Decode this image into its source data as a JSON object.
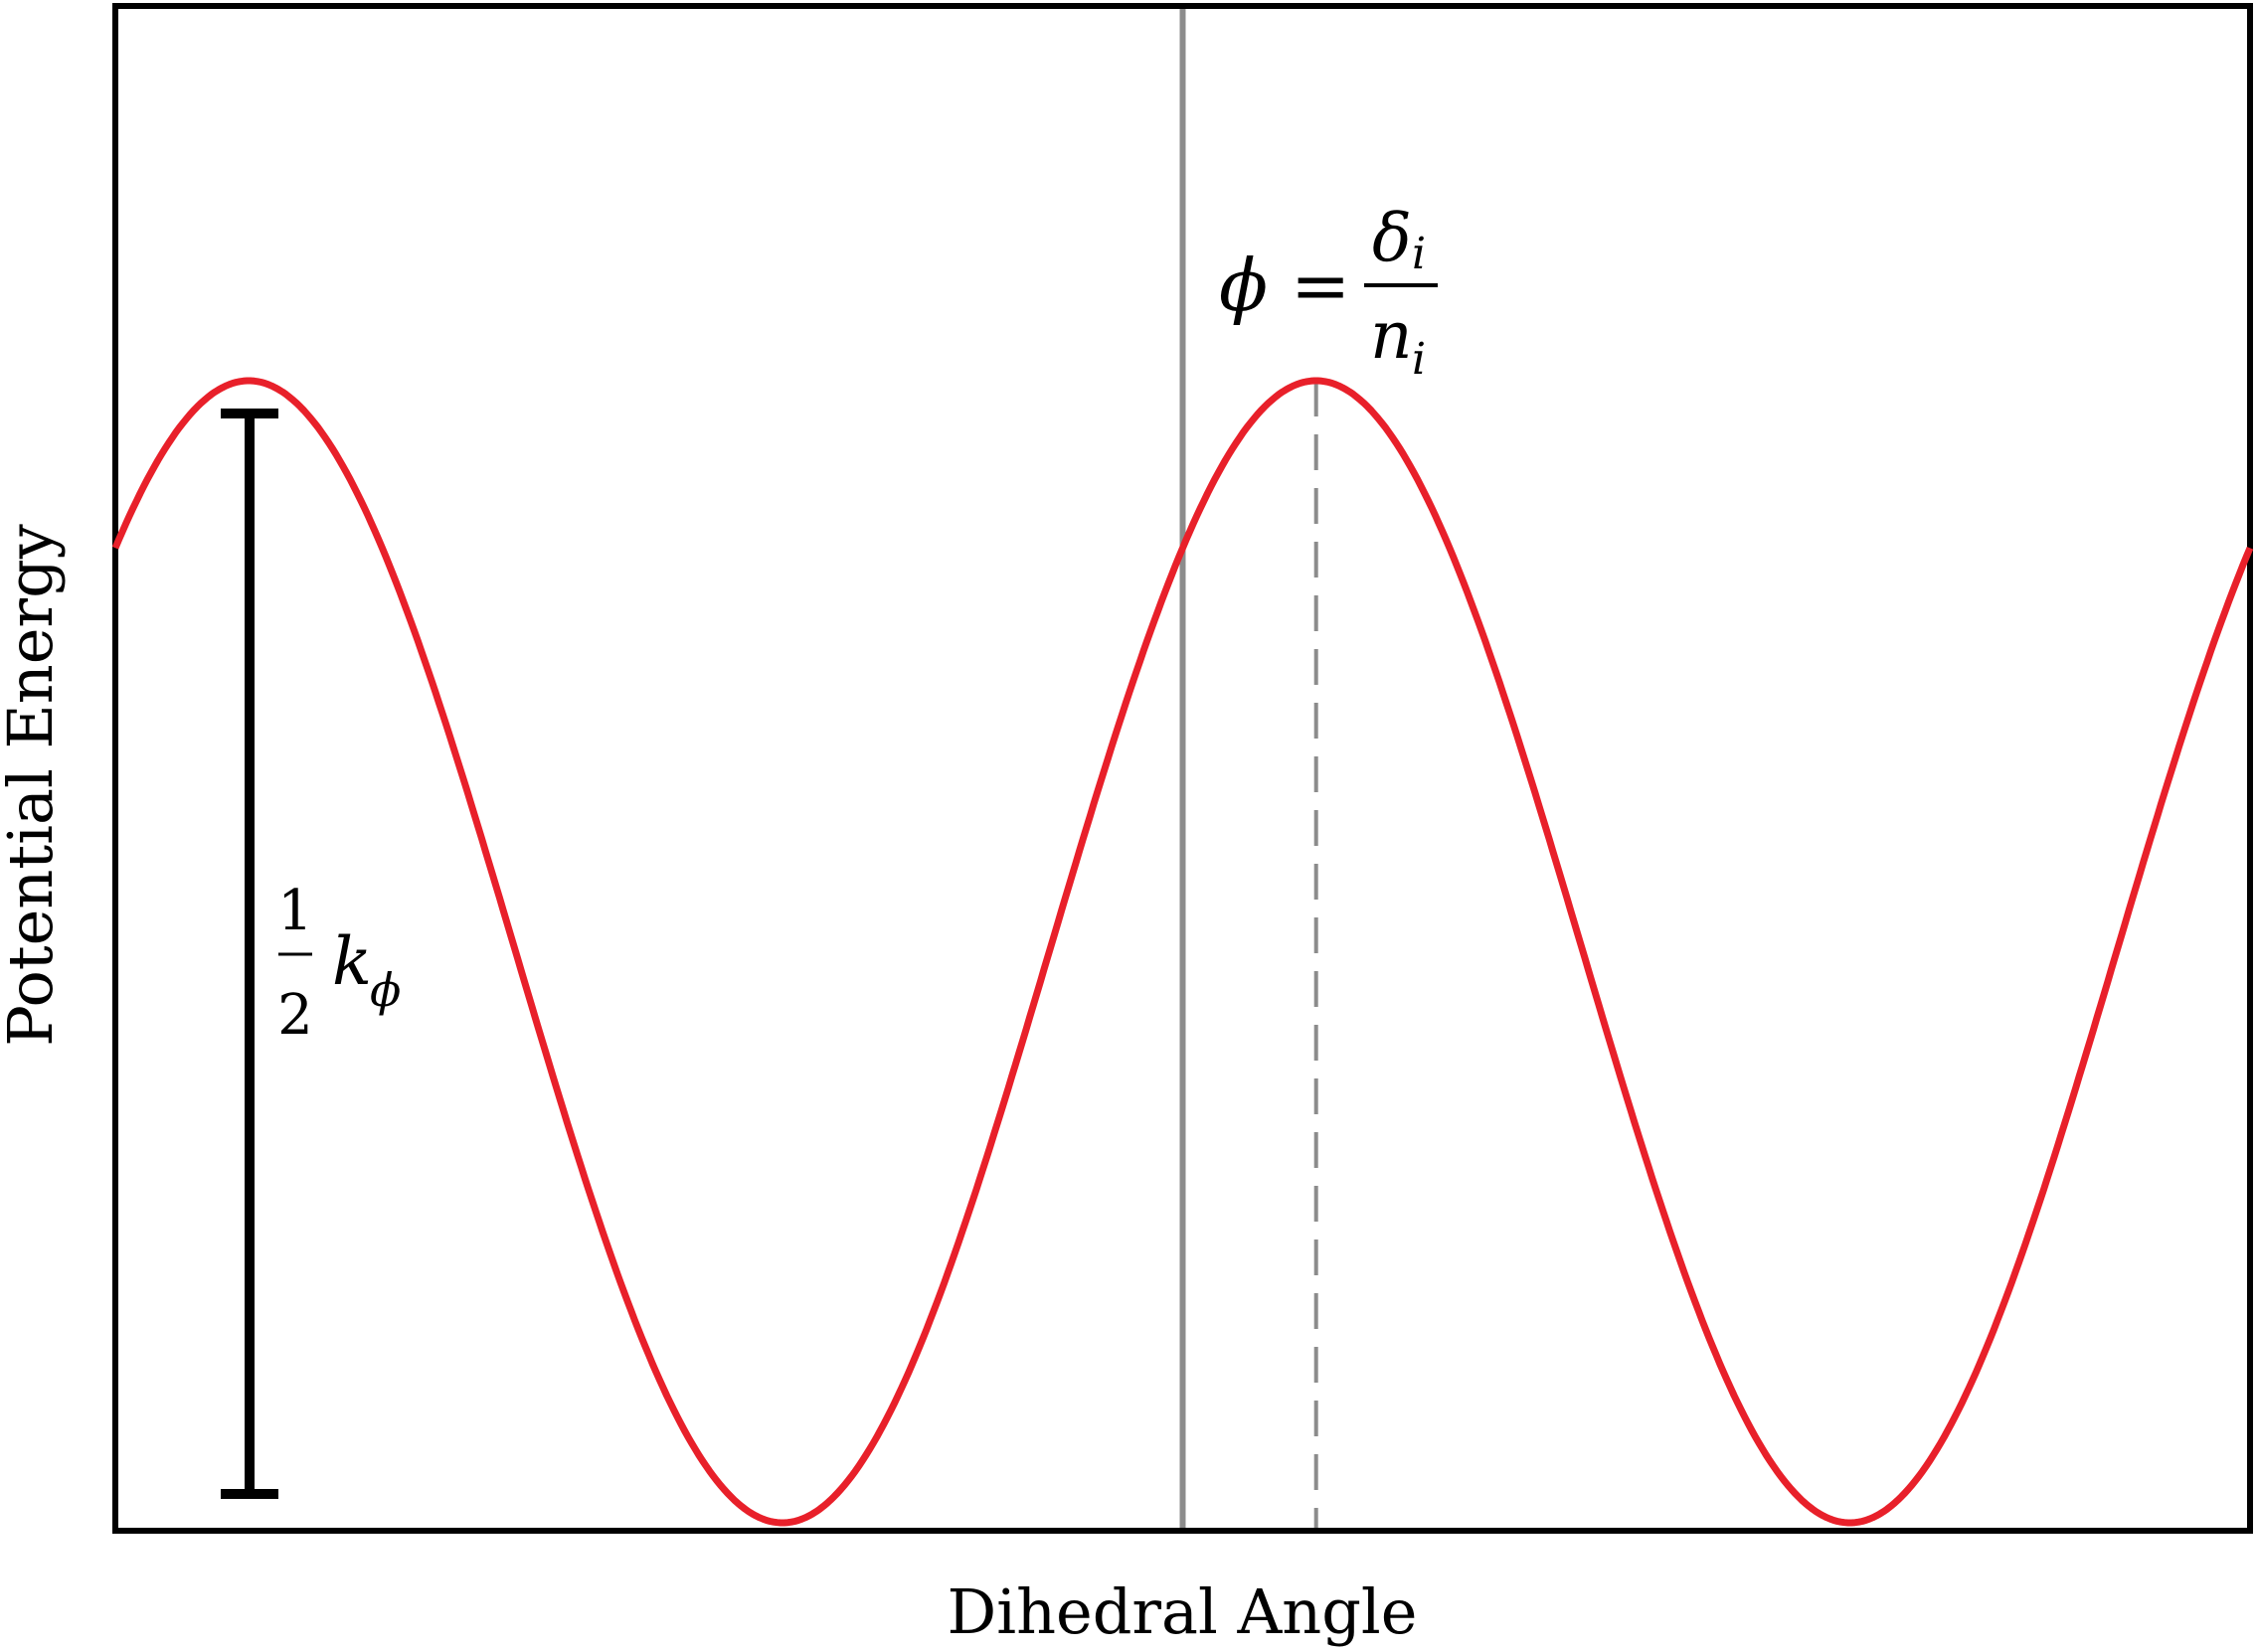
{
  "chart_data": {
    "type": "line",
    "xlabel": "Dihedral Angle",
    "ylabel": "Potential Energy",
    "xlim": [
      0,
      1
    ],
    "ylim": [
      0,
      1
    ],
    "show_ticks": false,
    "grid": false,
    "series": [
      {
        "color": "#e8202a",
        "function": "cosine",
        "periods_visible": 2,
        "peaks_x": [
          0.0625,
          0.5625
        ],
        "troughs_x": [
          0.3125,
          0.8125
        ],
        "y_min": 0.0,
        "y_max": 0.75
      }
    ],
    "reference_line": {
      "x": 0.5,
      "color": "#8c8c8c",
      "style": "solid"
    },
    "peak_marker": {
      "x": 0.5625,
      "color": "#8c8c8c",
      "style": "dashed"
    },
    "annotations": {
      "amplitude": {
        "fraction_numerator": "1",
        "fraction_denominator": "2",
        "symbol": "k",
        "subscript": "ϕ"
      },
      "phase": {
        "lhs": "ϕ",
        "equals": "=",
        "numerator": "δ",
        "numerator_subscript": "i",
        "denominator": "n",
        "denominator_subscript": "i"
      }
    }
  }
}
